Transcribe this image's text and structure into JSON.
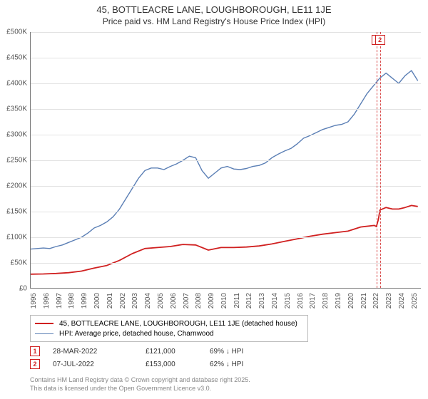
{
  "title": "45, BOTTLEACRE LANE, LOUGHBOROUGH, LE11 1JE",
  "subtitle": "Price paid vs. HM Land Registry's House Price Index (HPI)",
  "chart": {
    "type": "line",
    "xlim": [
      1995,
      2025.8
    ],
    "ylim": [
      0,
      500000
    ],
    "ytick_step": 50000,
    "yticks": [
      "£0",
      "£50K",
      "£100K",
      "£150K",
      "£200K",
      "£250K",
      "£300K",
      "£350K",
      "£400K",
      "£450K",
      "£500K"
    ],
    "xticks": [
      1995,
      1996,
      1997,
      1998,
      1999,
      2000,
      2001,
      2002,
      2003,
      2004,
      2005,
      2006,
      2007,
      2008,
      2009,
      2010,
      2011,
      2012,
      2013,
      2014,
      2015,
      2016,
      2017,
      2018,
      2019,
      2020,
      2021,
      2022,
      2023,
      2024,
      2025
    ],
    "grid_color": "#e2e2e2",
    "background_color": "#ffffff",
    "series": [
      {
        "name": "hpi",
        "label": "HPI: Average price, detached house, Charnwood",
        "color": "#5b7fb5",
        "width": 1.4,
        "data": [
          [
            1995,
            77000
          ],
          [
            1995.5,
            78000
          ],
          [
            1996,
            79000
          ],
          [
            1996.5,
            78000
          ],
          [
            1997,
            82000
          ],
          [
            1997.5,
            85000
          ],
          [
            1998,
            90000
          ],
          [
            1998.5,
            95000
          ],
          [
            1999,
            100000
          ],
          [
            1999.5,
            108000
          ],
          [
            2000,
            118000
          ],
          [
            2000.5,
            123000
          ],
          [
            2001,
            130000
          ],
          [
            2001.5,
            140000
          ],
          [
            2002,
            155000
          ],
          [
            2002.5,
            175000
          ],
          [
            2003,
            195000
          ],
          [
            2003.5,
            215000
          ],
          [
            2004,
            230000
          ],
          [
            2004.5,
            235000
          ],
          [
            2005,
            235000
          ],
          [
            2005.5,
            232000
          ],
          [
            2006,
            238000
          ],
          [
            2006.5,
            243000
          ],
          [
            2007,
            250000
          ],
          [
            2007.5,
            258000
          ],
          [
            2008,
            255000
          ],
          [
            2008.5,
            230000
          ],
          [
            2009,
            215000
          ],
          [
            2009.5,
            225000
          ],
          [
            2010,
            235000
          ],
          [
            2010.5,
            238000
          ],
          [
            2011,
            233000
          ],
          [
            2011.5,
            232000
          ],
          [
            2012,
            234000
          ],
          [
            2012.5,
            238000
          ],
          [
            2013,
            240000
          ],
          [
            2013.5,
            245000
          ],
          [
            2014,
            255000
          ],
          [
            2014.5,
            262000
          ],
          [
            2015,
            268000
          ],
          [
            2015.5,
            273000
          ],
          [
            2016,
            282000
          ],
          [
            2016.5,
            293000
          ],
          [
            2017,
            298000
          ],
          [
            2017.5,
            304000
          ],
          [
            2018,
            310000
          ],
          [
            2018.5,
            314000
          ],
          [
            2019,
            318000
          ],
          [
            2019.5,
            320000
          ],
          [
            2020,
            325000
          ],
          [
            2020.5,
            340000
          ],
          [
            2021,
            360000
          ],
          [
            2021.5,
            380000
          ],
          [
            2022,
            395000
          ],
          [
            2022.5,
            410000
          ],
          [
            2023,
            420000
          ],
          [
            2023.5,
            410000
          ],
          [
            2024,
            400000
          ],
          [
            2024.5,
            415000
          ],
          [
            2025,
            425000
          ],
          [
            2025.5,
            405000
          ]
        ]
      },
      {
        "name": "property",
        "label": "45, BOTTLEACRE LANE, LOUGHBOROUGH, LE11 1JE (detached house)",
        "color": "#d02020",
        "width": 1.8,
        "data": [
          [
            1995,
            28000
          ],
          [
            1996,
            28500
          ],
          [
            1997,
            29500
          ],
          [
            1998,
            31000
          ],
          [
            1999,
            34000
          ],
          [
            2000,
            40000
          ],
          [
            2001,
            45000
          ],
          [
            2002,
            55000
          ],
          [
            2003,
            68000
          ],
          [
            2004,
            78000
          ],
          [
            2005,
            80000
          ],
          [
            2006,
            82000
          ],
          [
            2007,
            86000
          ],
          [
            2008,
            85000
          ],
          [
            2009,
            75000
          ],
          [
            2010,
            80000
          ],
          [
            2011,
            80000
          ],
          [
            2012,
            81000
          ],
          [
            2013,
            83000
          ],
          [
            2014,
            87000
          ],
          [
            2015,
            92000
          ],
          [
            2016,
            97000
          ],
          [
            2017,
            102000
          ],
          [
            2018,
            106000
          ],
          [
            2019,
            109000
          ],
          [
            2020,
            112000
          ],
          [
            2021,
            120000
          ],
          [
            2022.08,
            123000
          ],
          [
            2022.24,
            121000
          ],
          [
            2022.4,
            135000
          ],
          [
            2022.52,
            153000
          ],
          [
            2023,
            158000
          ],
          [
            2023.5,
            155000
          ],
          [
            2024,
            155000
          ],
          [
            2024.5,
            158000
          ],
          [
            2025,
            162000
          ],
          [
            2025.5,
            160000
          ]
        ]
      }
    ],
    "markers": [
      {
        "n": "1",
        "x": 2022.24,
        "color": "#d02020"
      },
      {
        "n": "2",
        "x": 2022.52,
        "color": "#d02020"
      }
    ]
  },
  "legend": {
    "items": [
      {
        "color": "#d02020",
        "width": 2,
        "label": "45, BOTTLEACRE LANE, LOUGHBOROUGH, LE11 1JE (detached house)"
      },
      {
        "color": "#5b7fb5",
        "width": 1.4,
        "label": "HPI: Average price, detached house, Charnwood"
      }
    ]
  },
  "transactions": [
    {
      "n": "1",
      "color": "#d02020",
      "date": "28-MAR-2022",
      "price": "£121,000",
      "pct": "69% ↓ HPI"
    },
    {
      "n": "2",
      "color": "#d02020",
      "date": "07-JUL-2022",
      "price": "£153,000",
      "pct": "62% ↓ HPI"
    }
  ],
  "footer": {
    "line1": "Contains HM Land Registry data © Crown copyright and database right 2025.",
    "line2": "This data is licensed under the Open Government Licence v3.0."
  }
}
